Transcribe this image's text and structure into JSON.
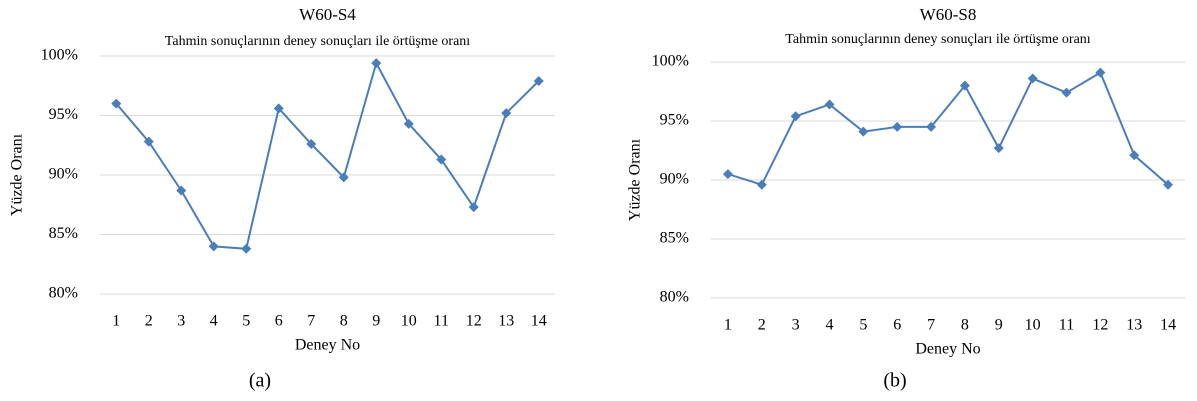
{
  "chart_data": [
    {
      "type": "line",
      "title": "W60-S4",
      "subtitle": "Tahmin sonuçlarının deney sonuçları ile örtüşme oranı",
      "x_label": "Deney No",
      "y_label": "Yüzde Oranı",
      "caption": "(a)",
      "categories": [
        "1",
        "2",
        "3",
        "4",
        "5",
        "6",
        "7",
        "8",
        "9",
        "10",
        "11",
        "12",
        "13",
        "14"
      ],
      "series": [
        {
          "name": "W60-S4",
          "color": "#4a7ebb",
          "values": [
            96.0,
            92.8,
            88.7,
            84.0,
            83.8,
            95.6,
            92.6,
            89.8,
            99.4,
            94.3,
            91.3,
            87.3,
            95.2,
            97.9
          ]
        }
      ],
      "ylim": [
        80,
        100
      ],
      "yticks": [
        {
          "value": 80,
          "label": "80%"
        },
        {
          "value": 85,
          "label": "85%"
        },
        {
          "value": 90,
          "label": "90%"
        },
        {
          "value": 95,
          "label": "95%"
        },
        {
          "value": 100,
          "label": "100%"
        }
      ],
      "grid": true
    },
    {
      "type": "line",
      "title": "W60-S8",
      "subtitle": "Tahmin sonuçlarının deney sonuçları ile örtüşme oranı",
      "x_label": "Deney No",
      "y_label": "Yüzde Oranı",
      "caption": "(b)",
      "categories": [
        "1",
        "2",
        "3",
        "4",
        "5",
        "6",
        "7",
        "8",
        "9",
        "10",
        "11",
        "12",
        "13",
        "14"
      ],
      "series": [
        {
          "name": "W60-S8",
          "color": "#4a7ebb",
          "values": [
            90.5,
            89.6,
            95.4,
            96.4,
            94.1,
            94.5,
            94.5,
            98.0,
            92.7,
            98.6,
            97.4,
            99.1,
            92.1,
            89.6
          ]
        }
      ],
      "ylim": [
        80,
        100
      ],
      "yticks": [
        {
          "value": 80,
          "label": "80%"
        },
        {
          "value": 85,
          "label": "85%"
        },
        {
          "value": 90,
          "label": "90%"
        },
        {
          "value": 95,
          "label": "95%"
        },
        {
          "value": 100,
          "label": "100%"
        }
      ],
      "grid": true
    }
  ]
}
